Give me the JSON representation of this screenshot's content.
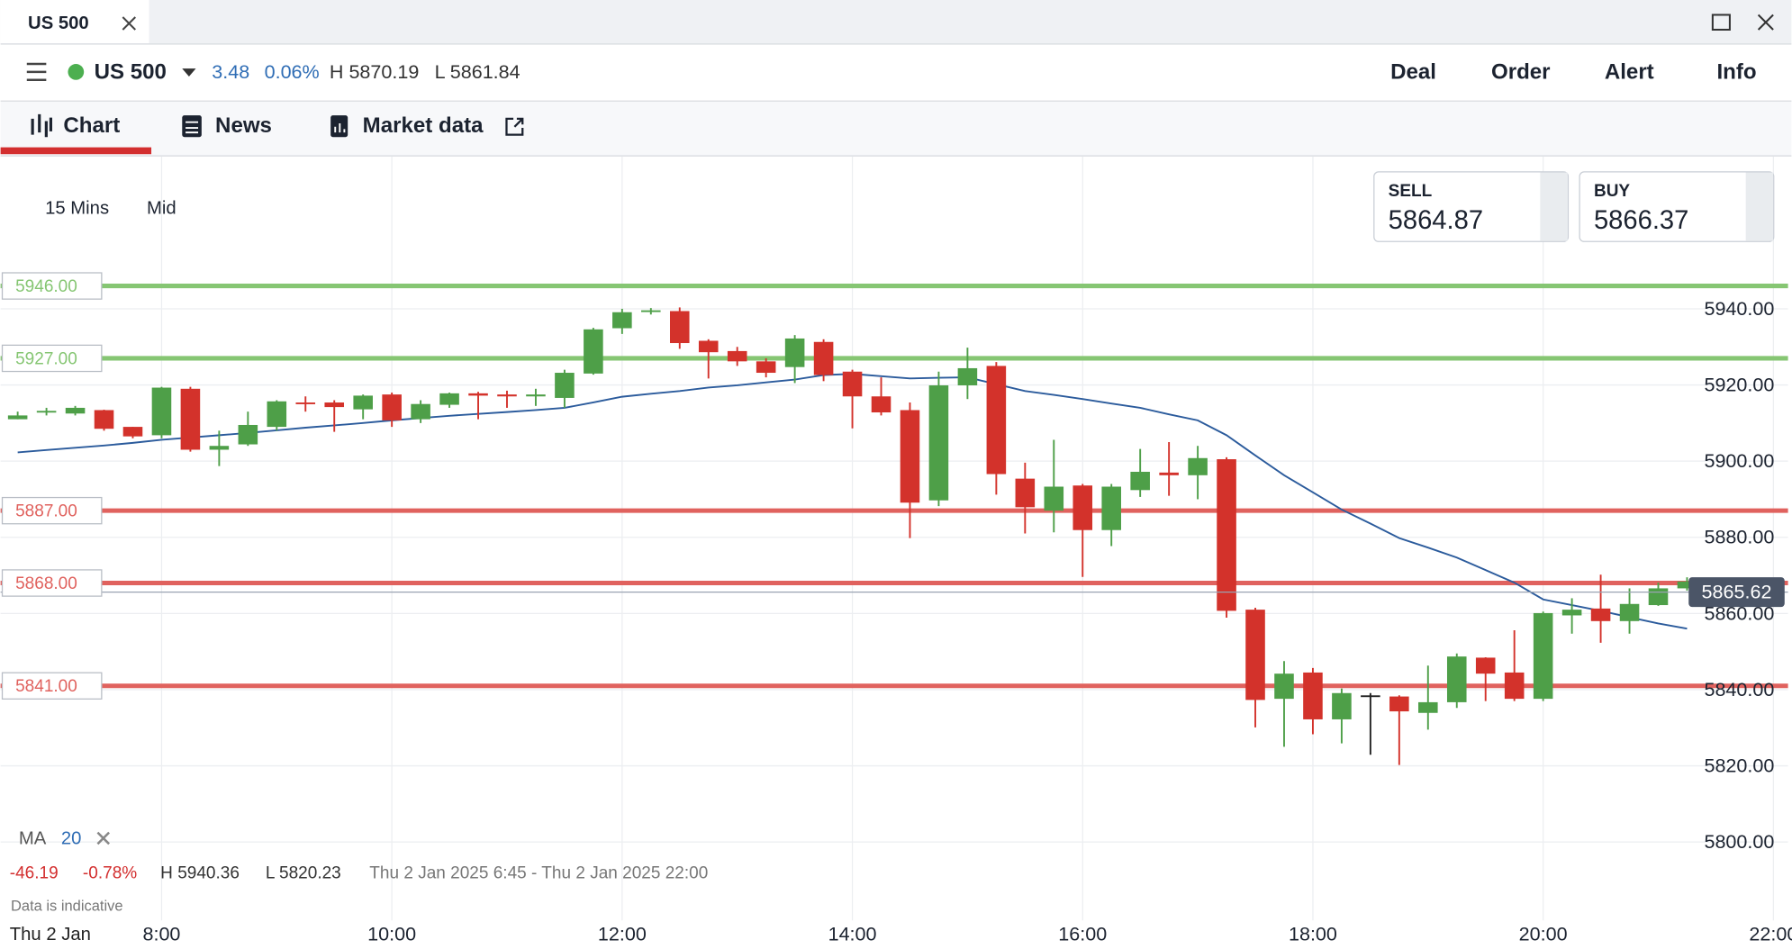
{
  "window": {
    "tab": "US 500"
  },
  "instrument": {
    "name": "US 500",
    "change": 3.48,
    "change_pct": "0.06%",
    "high": "H 5870.19",
    "low": "L 5861.84"
  },
  "actions": [
    "Deal",
    "Order",
    "Alert",
    "Info"
  ],
  "tabs": [
    "Chart",
    "News",
    "Market data"
  ],
  "settings": {
    "interval": "15 Mins",
    "price_type": "Mid"
  },
  "quotes": {
    "sell_label": "SELL",
    "sell": 5864.87,
    "buy_label": "BUY",
    "buy": 5866.37
  },
  "summary": {
    "change": -46.19,
    "change_pct": "-0.78%",
    "high": "H 5940.36",
    "low": "L 5820.23",
    "range": "Thu 2 Jan 2025 6:45 - Thu 2 Jan 2025 22:00",
    "note": "Data is indicative",
    "date": "Thu 2 Jan"
  },
  "chart_data": {
    "type": "candlestick",
    "categories": [
      null,
      null,
      null,
      null,
      null,
      "8:00",
      null,
      null,
      null,
      null,
      null,
      null,
      null,
      "10:00",
      null,
      null,
      null,
      null,
      null,
      null,
      null,
      "12:00",
      null,
      null,
      null,
      null,
      null,
      null,
      null,
      "14:00",
      null,
      null,
      null,
      null,
      null,
      null,
      null,
      "16:00",
      null,
      null,
      null,
      null,
      null,
      null,
      null,
      "18:00",
      null,
      null,
      null,
      null,
      null,
      null,
      null,
      "20:00",
      null,
      null,
      null,
      null,
      null,
      null,
      null,
      "22:00"
    ],
    "open": [
      5911,
      5913,
      5912.5,
      5913.4,
      5909,
      5906.8,
      5919,
      5903,
      5904.4,
      5909,
      5915.4,
      5915.4,
      5913.6,
      5917.5,
      5911,
      5914.8,
      5917.8,
      5917.5,
      5917,
      5916.6,
      5923,
      5934.9,
      5939.2,
      5939.4,
      5931.6,
      5928.9,
      5926.2,
      5924.7,
      5931.3,
      5923.5,
      5917,
      5913.4,
      5889.7,
      5919.9,
      5925,
      5895.4,
      5887,
      5893.6,
      5881.9,
      5892.4,
      5897,
      5896.3,
      5900.5,
      5861,
      5837.6,
      5844.5,
      5832.2,
      5838.5,
      5838.2,
      5833.9,
      5836.7,
      5848.4,
      5844.5,
      5837.6,
      5859.5,
      5861.3,
      5858,
      5862.2,
      5866.6,
      null,
      null,
      null
    ],
    "high": [
      5913,
      5914,
      5914.5,
      5913.5,
      5909,
      5919.5,
      5919.5,
      5908,
      5913,
      5916,
      5917,
      5916,
      5917.5,
      5918,
      5916,
      5918,
      5918.2,
      5918.5,
      5919,
      5924,
      5935,
      5940,
      5940.2,
      5940.36,
      5932,
      5930,
      5927,
      5933.1,
      5932,
      5924,
      5922,
      5915.4,
      5923.5,
      5929.8,
      5926,
      5899.6,
      5905.6,
      5894,
      5894,
      5903.2,
      5905,
      5904,
      5901,
      5861.5,
      5847.5,
      5845.7,
      5840.3,
      5839.1,
      5838.5,
      5846.3,
      5849.5,
      5848.5,
      5855.6,
      5860.5,
      5864,
      5870.2,
      5866.6,
      5868.1,
      5869.5,
      null,
      null,
      null
    ],
    "low": [
      5911,
      5912,
      5912,
      5908,
      5906,
      5906,
      5902.5,
      5898.7,
      5904,
      5908,
      5913,
      5907.7,
      5911,
      5909,
      5910,
      5914,
      5911,
      5914,
      5914.5,
      5914,
      5922.7,
      5933.4,
      5938.5,
      5929.5,
      5921.7,
      5925,
      5922,
      5920.5,
      5921,
      5908.6,
      5912,
      5879.8,
      5888.2,
      5916.3,
      5891.2,
      5881,
      5881.3,
      5869.6,
      5877.7,
      5890.6,
      5890.9,
      5890,
      5858.9,
      5830.1,
      5825,
      5828.3,
      5825.9,
      5822.9,
      5820.23,
      5829.5,
      5835.2,
      5837,
      5837,
      5837,
      5854.7,
      5852.3,
      5854.7,
      5862,
      5866,
      null,
      null,
      null
    ],
    "close": [
      5912,
      5913.2,
      5914,
      5908.5,
      5906.5,
      5919.3,
      5903,
      5904,
      5909.5,
      5915.7,
      5915.2,
      5914.2,
      5917.2,
      5910.7,
      5915,
      5917.8,
      5917.2,
      5917,
      5917.5,
      5923.2,
      5934.6,
      5939.1,
      5939.6,
      5931,
      5928.6,
      5926.2,
      5923.2,
      5932.2,
      5922.6,
      5917,
      5912.8,
      5889.1,
      5919.9,
      5924.4,
      5896.6,
      5887.9,
      5893.3,
      5881.9,
      5893.3,
      5897.2,
      5896.3,
      5900.8,
      5860.7,
      5837.3,
      5844.2,
      5832.2,
      5839.1,
      5838.5,
      5834.3,
      5836.7,
      5848.7,
      5844.2,
      5837.6,
      5860.1,
      5861,
      5858,
      5862.5,
      5866.6,
      5868.4,
      null,
      null,
      null
    ],
    "up_color": "#4e9f48",
    "down_color": "#d3322b",
    "flat_color": "#222222",
    "ma": {
      "name": "MA",
      "period": 20,
      "color": "#2b5b9c",
      "values": [
        5902.3,
        5902.9,
        5903.5,
        5904.1,
        5904.8,
        5905.6,
        5906.2,
        5906.8,
        5907.4,
        5908.1,
        5908.8,
        5909.4,
        5910.0,
        5910.7,
        5911.3,
        5911.9,
        5912.4,
        5912.9,
        5913.4,
        5914.0,
        5915.4,
        5916.9,
        5917.7,
        5918.4,
        5919.3,
        5919.9,
        5920.7,
        5921.4,
        5922.6,
        5922.9,
        5922.3,
        5921.7,
        5921.9,
        5922.0,
        5920.2,
        5918.4,
        5917.4,
        5916.3,
        5915.1,
        5914.0,
        5912.3,
        5910.7,
        5906.8,
        5901.5,
        5896.3,
        5891.8,
        5887.3,
        5883.6,
        5879.8,
        5877.3,
        5874.7,
        5871.4,
        5868.1,
        5863.7,
        5862.2,
        5860.7,
        5859.0,
        5857.4,
        5856.0,
        null,
        null,
        null
      ]
    },
    "ylim": [
      5780,
      5980
    ],
    "yticks": [
      {
        "value": 5800,
        "label": "5800.00"
      },
      {
        "value": 5820,
        "label": "5820.00"
      },
      {
        "value": 5840,
        "label": "5840.00"
      },
      {
        "value": 5860,
        "label": "5860.00"
      },
      {
        "value": 5880,
        "label": "5880.00"
      },
      {
        "value": 5900,
        "label": "5900.00"
      },
      {
        "value": 5920,
        "label": "5920.00"
      },
      {
        "value": 5940,
        "label": "5940.00"
      }
    ],
    "grid": true,
    "levels": [
      {
        "value": 5946,
        "label": "5946.00",
        "color": "#86c673"
      },
      {
        "value": 5927,
        "label": "5927.00",
        "color": "#86c673"
      },
      {
        "value": 5887,
        "label": "5887.00",
        "color": "#e0625e"
      },
      {
        "value": 5868,
        "label": "5868.00",
        "color": "#e0625e"
      },
      {
        "value": 5841,
        "label": "5841.00",
        "color": "#e0625e"
      }
    ],
    "last_price": {
      "value": 5865.62,
      "color": "#4b5567"
    }
  }
}
